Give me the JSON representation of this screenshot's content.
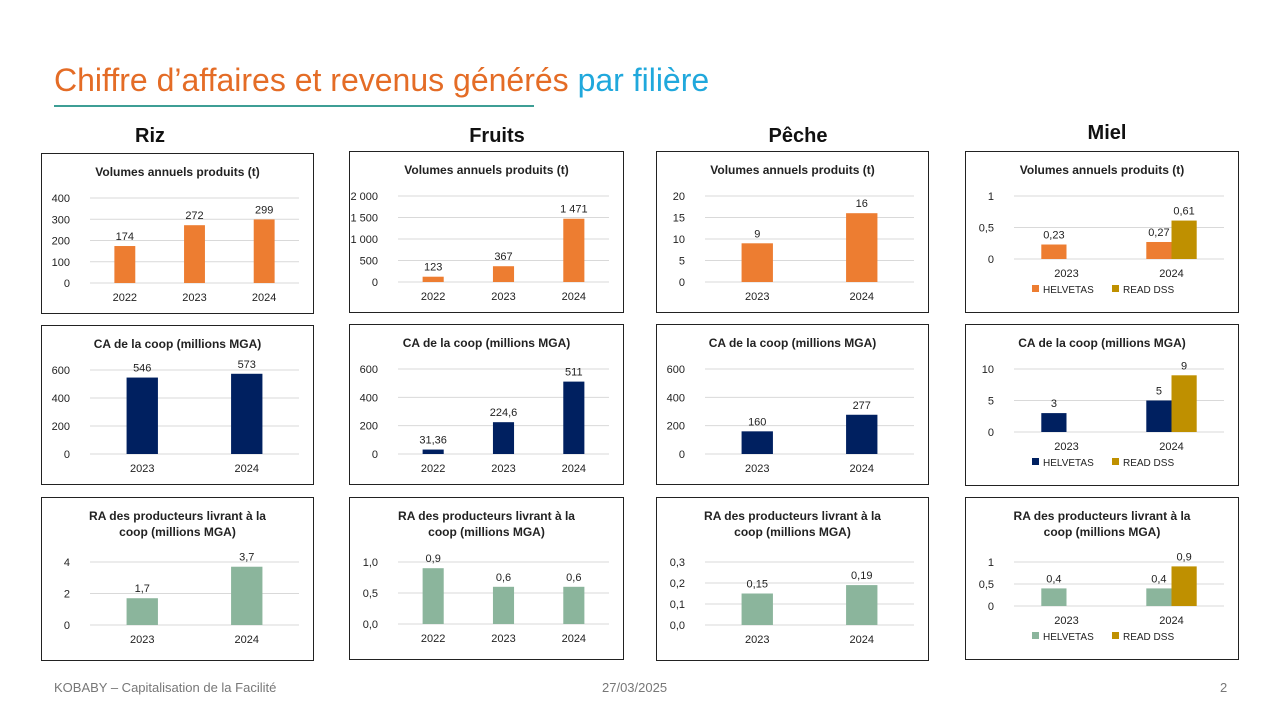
{
  "slide": {
    "title_part1": "Chiffre d’affaires et revenus générés",
    "title_part2": "par filière",
    "footer_left": "KOBABY – Capitalisation de la Facilité",
    "footer_date": "27/03/2025",
    "page_number": "2"
  },
  "columns": [
    "Riz",
    "Fruits",
    "Pêche",
    "Miel"
  ],
  "colors": {
    "orange": "#ED7D31",
    "navy": "#002060",
    "sage": "#8BB59C",
    "gold": "#BF9000",
    "grid": "#D9D9D9",
    "title_orange": "#E46C26",
    "title_blue": "#20A8DC"
  },
  "chart_data": [
    {
      "id": "riz-volumes",
      "type": "bar",
      "title": [
        "Volumes annuels produits (t)"
      ],
      "categories": [
        "2022",
        "2023",
        "2024"
      ],
      "series": [
        {
          "name": "",
          "color": "#ED7D31",
          "values": [
            174,
            272,
            299
          ],
          "labels": [
            "174",
            "272",
            "299"
          ]
        }
      ],
      "ylim": [
        0,
        400
      ],
      "yticks": [
        0,
        100,
        200,
        300,
        400
      ],
      "ytick_labels": [
        "0",
        "100",
        "200",
        "300",
        "400"
      ],
      "legend": false
    },
    {
      "id": "fruits-volumes",
      "type": "bar",
      "title": [
        "Volumes annuels produits (t)"
      ],
      "categories": [
        "2022",
        "2023",
        "2024"
      ],
      "series": [
        {
          "name": "",
          "color": "#ED7D31",
          "values": [
            123,
            367,
            1471
          ],
          "labels": [
            "123",
            "367",
            "1 471"
          ]
        }
      ],
      "ylim": [
        0,
        2000
      ],
      "yticks": [
        0,
        500,
        1000,
        1500,
        2000
      ],
      "ytick_labels": [
        "0",
        "500",
        "1 000",
        "1 500",
        "2 000"
      ],
      "legend": false
    },
    {
      "id": "peche-volumes",
      "type": "bar",
      "title": [
        "Volumes annuels produits (t)"
      ],
      "categories": [
        "2023",
        "2024"
      ],
      "series": [
        {
          "name": "",
          "color": "#ED7D31",
          "values": [
            9,
            16
          ],
          "labels": [
            "9",
            "16"
          ]
        }
      ],
      "ylim": [
        0,
        20
      ],
      "yticks": [
        0,
        5,
        10,
        15,
        20
      ],
      "ytick_labels": [
        "0",
        "5",
        "10",
        "15",
        "20"
      ],
      "legend": false
    },
    {
      "id": "miel-volumes",
      "type": "bar",
      "title": [
        "Volumes annuels produits (t)"
      ],
      "categories": [
        "2023",
        "2024"
      ],
      "series": [
        {
          "name": "HELVETAS",
          "color": "#ED7D31",
          "values": [
            0.23,
            0.27
          ],
          "labels": [
            "0,23",
            "0,27"
          ]
        },
        {
          "name": "READ DSS",
          "color": "#BF9000",
          "values": [
            null,
            0.61
          ],
          "labels": [
            "",
            "0,61"
          ]
        }
      ],
      "ylim": [
        0,
        1
      ],
      "yticks": [
        0,
        0.5,
        1
      ],
      "ytick_labels": [
        "0",
        "0,5",
        "1"
      ],
      "legend": true
    },
    {
      "id": "riz-ca",
      "type": "bar",
      "title": [
        "CA de la coop (millions MGA)"
      ],
      "categories": [
        "2023",
        "2024"
      ],
      "series": [
        {
          "name": "",
          "color": "#002060",
          "values": [
            546,
            573
          ],
          "labels": [
            "546",
            "573"
          ]
        }
      ],
      "ylim": [
        0,
        600
      ],
      "yticks": [
        0,
        200,
        400,
        600
      ],
      "ytick_labels": [
        "0",
        "200",
        "400",
        "600"
      ],
      "legend": false
    },
    {
      "id": "fruits-ca",
      "type": "bar",
      "title": [
        "CA de la coop (millions MGA)"
      ],
      "categories": [
        "2022",
        "2023",
        "2024"
      ],
      "series": [
        {
          "name": "",
          "color": "#002060",
          "values": [
            31.36,
            224.6,
            511
          ],
          "labels": [
            "31,36",
            "224,6",
            "511"
          ]
        }
      ],
      "ylim": [
        0,
        600
      ],
      "yticks": [
        0,
        200,
        400,
        600
      ],
      "ytick_labels": [
        "0",
        "200",
        "400",
        "600"
      ],
      "legend": false
    },
    {
      "id": "peche-ca",
      "type": "bar",
      "title": [
        "CA de la coop (millions MGA)"
      ],
      "categories": [
        "2023",
        "2024"
      ],
      "series": [
        {
          "name": "",
          "color": "#002060",
          "values": [
            160,
            277
          ],
          "labels": [
            "160",
            "277"
          ]
        }
      ],
      "ylim": [
        0,
        600
      ],
      "yticks": [
        0,
        200,
        400,
        600
      ],
      "ytick_labels": [
        "0",
        "200",
        "400",
        "600"
      ],
      "legend": false
    },
    {
      "id": "miel-ca",
      "type": "bar",
      "title": [
        "CA de la coop (millions MGA)"
      ],
      "categories": [
        "2023",
        "2024"
      ],
      "series": [
        {
          "name": "HELVETAS",
          "color": "#002060",
          "values": [
            3,
            5
          ],
          "labels": [
            "3",
            "5"
          ]
        },
        {
          "name": "READ DSS",
          "color": "#BF9000",
          "values": [
            null,
            9
          ],
          "labels": [
            "",
            "9"
          ]
        }
      ],
      "ylim": [
        0,
        10
      ],
      "yticks": [
        0,
        5,
        10
      ],
      "ytick_labels": [
        "0",
        "5",
        "10"
      ],
      "legend": true
    },
    {
      "id": "riz-ra",
      "type": "bar",
      "title": [
        "RA des producteurs livrant à la",
        "coop (millions MGA)"
      ],
      "categories": [
        "2023",
        "2024"
      ],
      "series": [
        {
          "name": "",
          "color": "#8BB59C",
          "values": [
            1.7,
            3.7
          ],
          "labels": [
            "1,7",
            "3,7"
          ]
        }
      ],
      "ylim": [
        0,
        4
      ],
      "yticks": [
        0,
        2,
        4
      ],
      "ytick_labels": [
        "0",
        "2",
        "4"
      ],
      "legend": false
    },
    {
      "id": "fruits-ra",
      "type": "bar",
      "title": [
        "RA des producteurs livrant à la",
        "coop (millions MGA)"
      ],
      "categories": [
        "2022",
        "2023",
        "2024"
      ],
      "series": [
        {
          "name": "",
          "color": "#8BB59C",
          "values": [
            0.9,
            0.6,
            0.6
          ],
          "labels": [
            "0,9",
            "0,6",
            "0,6"
          ]
        }
      ],
      "ylim": [
        0,
        1
      ],
      "yticks": [
        0,
        0.5,
        1
      ],
      "ytick_labels": [
        "0,0",
        "0,5",
        "1,0"
      ],
      "legend": false
    },
    {
      "id": "peche-ra",
      "type": "bar",
      "title": [
        "RA des producteurs livrant à la",
        "coop (millions MGA)"
      ],
      "categories": [
        "2023",
        "2024"
      ],
      "series": [
        {
          "name": "",
          "color": "#8BB59C",
          "values": [
            0.15,
            0.19
          ],
          "labels": [
            "0,15",
            "0,19"
          ]
        }
      ],
      "ylim": [
        0,
        0.3
      ],
      "yticks": [
        0,
        0.1,
        0.2,
        0.3
      ],
      "ytick_labels": [
        "0,0",
        "0,1",
        "0,2",
        "0,3"
      ],
      "legend": false
    },
    {
      "id": "miel-ra",
      "type": "bar",
      "title": [
        "RA des producteurs livrant à la",
        "coop (millions MGA)"
      ],
      "categories": [
        "2023",
        "2024"
      ],
      "series": [
        {
          "name": "HELVETAS",
          "color": "#8BB59C",
          "values": [
            0.4,
            0.4
          ],
          "labels": [
            "0,4",
            "0,4"
          ]
        },
        {
          "name": "READ DSS",
          "color": "#BF9000",
          "values": [
            null,
            0.9
          ],
          "labels": [
            "",
            "0,9"
          ]
        }
      ],
      "ylim": [
        0,
        1
      ],
      "yticks": [
        0,
        0.5,
        1
      ],
      "ytick_labels": [
        "0",
        "0,5",
        "1"
      ],
      "legend": true
    }
  ]
}
